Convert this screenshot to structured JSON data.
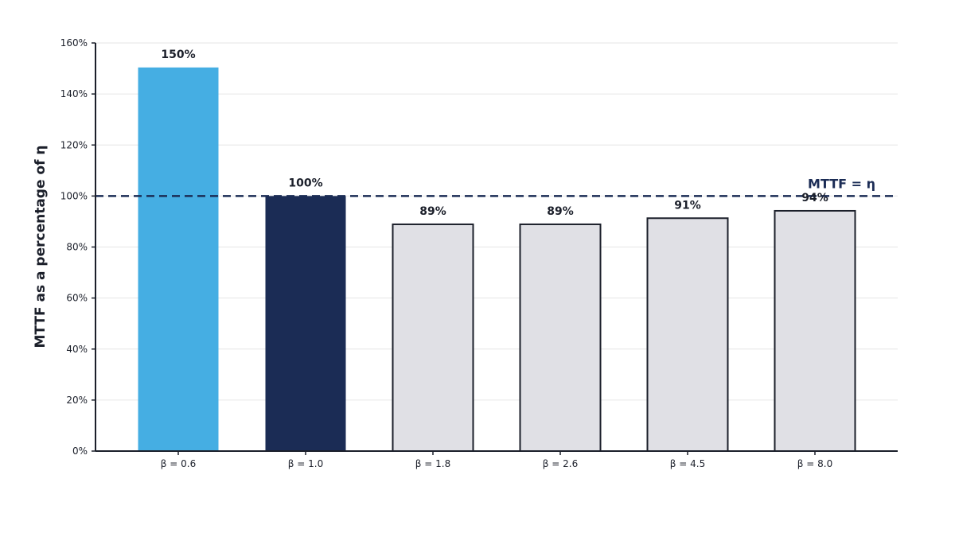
{
  "chart_data": {
    "type": "bar",
    "title": "",
    "xlabel": "",
    "ylabel": "MTTF as a percentage of η",
    "categories": [
      "β = 0.6",
      "β = 1.0",
      "β = 1.8",
      "β = 2.6",
      "β = 4.5",
      "β = 8.0"
    ],
    "values": [
      150.4,
      100,
      88.9,
      88.9,
      91.3,
      94.2
    ],
    "value_labels": [
      "150%",
      "100%",
      "89%",
      "89%",
      "91%",
      "94%"
    ],
    "ylim": [
      0,
      160
    ],
    "yticks": [
      0,
      20,
      40,
      60,
      80,
      100,
      120,
      140,
      160
    ],
    "ytick_labels": [
      "0%",
      "20%",
      "40%",
      "60%",
      "80%",
      "100%",
      "120%",
      "140%",
      "160%"
    ],
    "grid": "horizontal",
    "reference_line": {
      "value": 100,
      "label": "MTTF = η",
      "style": "dashed"
    },
    "bar_colors": [
      "#45aee3",
      "#1b2c55",
      "#e0e0e5",
      "#e0e0e5",
      "#e0e0e5",
      "#e0e0e5"
    ],
    "bar_outlined": [
      false,
      false,
      true,
      true,
      true,
      true
    ],
    "colors": {
      "outline": "#1b1f2a",
      "axis": "#1b1f2a",
      "grid": "#e6e6e6",
      "reference": "#1b2c55"
    }
  }
}
